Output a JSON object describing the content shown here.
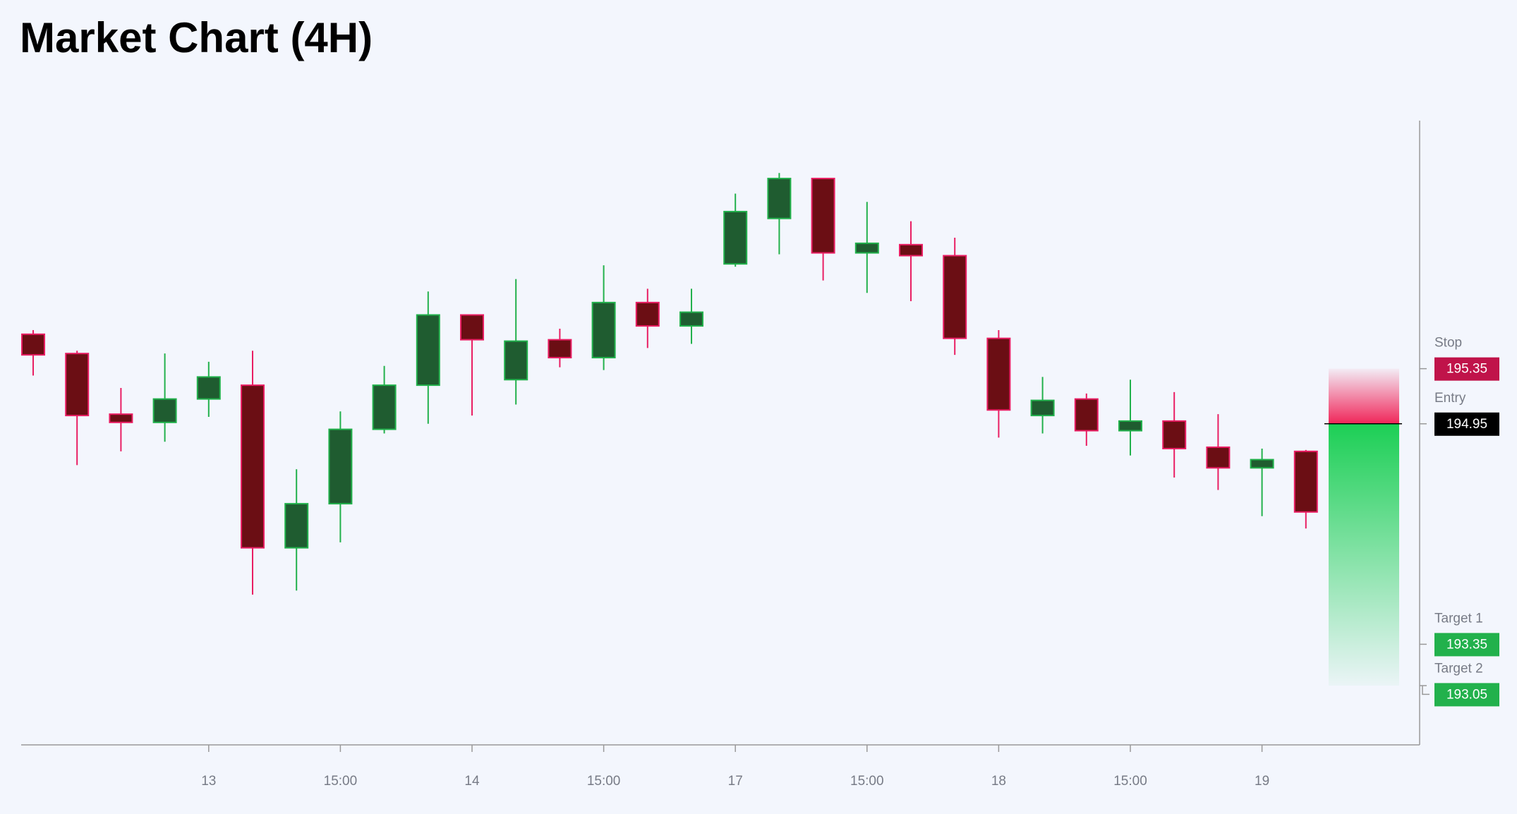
{
  "chart_data": {
    "type": "candlestick",
    "title": "Market Chart (4H)",
    "categories": [
      null,
      null,
      null,
      null,
      "13",
      null,
      null,
      "15:00",
      null,
      null,
      "14",
      null,
      null,
      "15:00",
      null,
      null,
      "17",
      null,
      null,
      "15:00",
      null,
      null,
      "18",
      null,
      null,
      "15:00",
      null,
      null,
      "19",
      null
    ],
    "open": [
      195.6,
      195.46,
      195.02,
      194.96,
      195.13,
      195.23,
      194.05,
      194.37,
      194.91,
      195.23,
      195.74,
      195.27,
      195.56,
      195.43,
      195.83,
      195.66,
      196.11,
      196.44,
      196.73,
      196.19,
      196.25,
      196.17,
      195.57,
      195.01,
      195.13,
      194.9,
      194.97,
      194.78,
      194.63,
      194.75
    ],
    "high": [
      195.63,
      195.48,
      195.21,
      195.46,
      195.4,
      195.48,
      194.62,
      195.04,
      195.37,
      195.91,
      195.74,
      196.0,
      195.64,
      196.1,
      195.93,
      195.93,
      196.62,
      196.77,
      196.73,
      196.56,
      196.42,
      196.3,
      195.63,
      195.29,
      195.17,
      195.27,
      195.18,
      195.02,
      194.77,
      194.76
    ],
    "low": [
      195.3,
      194.65,
      194.75,
      194.82,
      195.0,
      193.71,
      193.74,
      194.09,
      194.88,
      194.95,
      195.01,
      195.09,
      195.36,
      195.34,
      195.5,
      195.53,
      196.09,
      196.18,
      195.99,
      195.9,
      195.84,
      195.45,
      194.85,
      194.88,
      194.79,
      194.72,
      194.56,
      194.47,
      194.28,
      194.19
    ],
    "close": [
      195.45,
      195.01,
      194.96,
      195.13,
      195.29,
      194.05,
      194.37,
      194.91,
      195.23,
      195.74,
      195.56,
      195.55,
      195.43,
      195.83,
      195.66,
      195.76,
      196.49,
      196.73,
      196.19,
      196.26,
      196.17,
      195.57,
      195.05,
      195.12,
      194.9,
      194.97,
      194.77,
      194.63,
      194.69,
      194.31
    ],
    "up_color": "#1f5c30",
    "up_edge": "#22b14c",
    "down_color": "#6b0e14",
    "down_edge": "#e91e63",
    "ylim": [
      192.62,
      197.15
    ],
    "levels": [
      {
        "name": "Stop",
        "value": 195.35,
        "color": "#c0134a"
      },
      {
        "name": "Entry",
        "value": 194.95,
        "color": "#000000"
      },
      {
        "name": "Target 1",
        "value": 193.35,
        "color": "#22b14c"
      },
      {
        "name": "Target 2",
        "value": 193.05,
        "color": "#22b14c"
      }
    ]
  }
}
